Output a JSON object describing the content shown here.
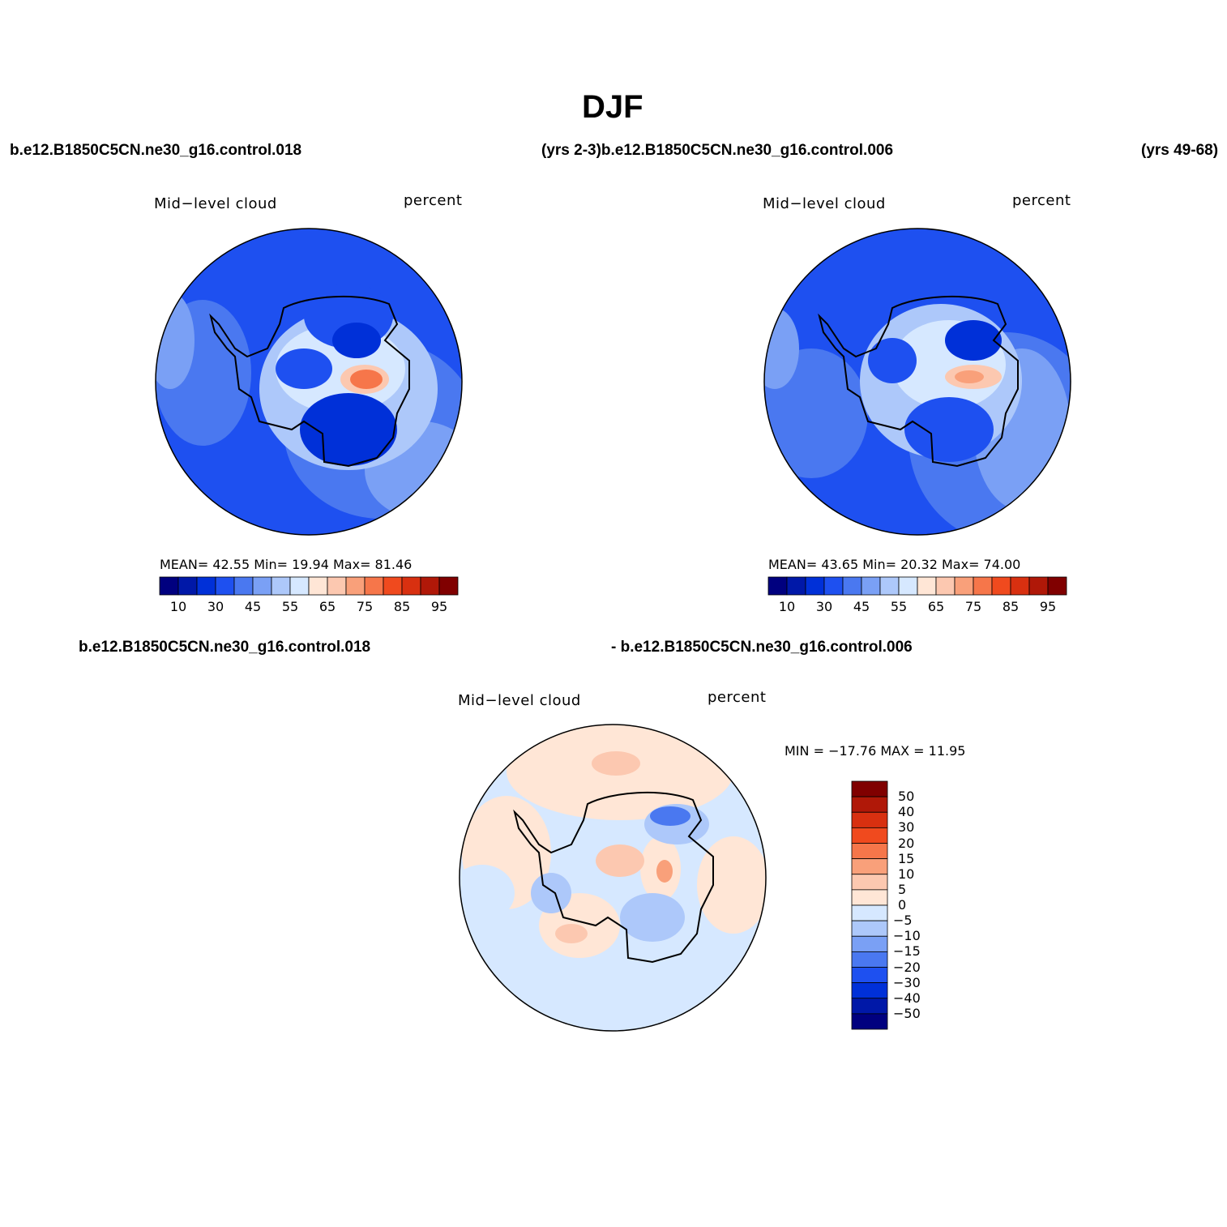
{
  "title": "DJF",
  "top_row": {
    "case_left": "b.e12.B1850C5CN.ne30_g16.control.018",
    "case_mid": "(yrs 2-3)b.e12.B1850C5CN.ne30_g16.control.006",
    "case_right": "(yrs 49-68)"
  },
  "panel1": {
    "variable": "Mid−level cloud",
    "units": "percent",
    "stats": "MEAN=   42.55   Min=   19.94   Max=   81.46"
  },
  "panel2": {
    "variable": "Mid−level cloud",
    "units": "percent",
    "stats": "MEAN=   43.65   Min=   20.32   Max=   74.00"
  },
  "diff_row": {
    "case_left": "b.e12.B1850C5CN.ne30_g16.control.018",
    "case_right": "- b.e12.B1850C5CN.ne30_g16.control.006"
  },
  "panel3": {
    "variable": "Mid−level cloud",
    "units": "percent",
    "stats": "MIN = −17.76 MAX =   11.95"
  },
  "colorbar_abs": {
    "colors": [
      "#00007f",
      "#0018a8",
      "#0030d8",
      "#1e50f0",
      "#4a78f0",
      "#7aa0f5",
      "#adc8fa",
      "#d6e8ff",
      "#ffe6d6",
      "#fcc8b0",
      "#f9a07a",
      "#f6764a",
      "#f04a1e",
      "#d83010",
      "#b01808",
      "#800000"
    ],
    "ticks": [
      "10",
      "30",
      "45",
      "55",
      "65",
      "75",
      "85",
      "95"
    ]
  },
  "colorbar_diff": {
    "colors": [
      "#00007f",
      "#0018a8",
      "#0030d8",
      "#1e50f0",
      "#4a78f0",
      "#7aa0f5",
      "#adc8fa",
      "#d6e8ff",
      "#ffe6d6",
      "#fcc8b0",
      "#f9a07a",
      "#f6764a",
      "#f04a1e",
      "#d83010",
      "#b01808",
      "#800000"
    ],
    "ticks": [
      "50",
      "40",
      "30",
      "20",
      "15",
      "10",
      "5",
      "0",
      "−5",
      "−10",
      "−15",
      "−20",
      "−30",
      "−40",
      "−50"
    ]
  },
  "field_colors": {
    "ocean_dark": "#1e50f0",
    "ocean_mid": "#4a78f0",
    "ocean_light": "#7aa0f5",
    "diff_neutral": "#d6e8ff",
    "diff_pos": "#ffe6d6"
  }
}
